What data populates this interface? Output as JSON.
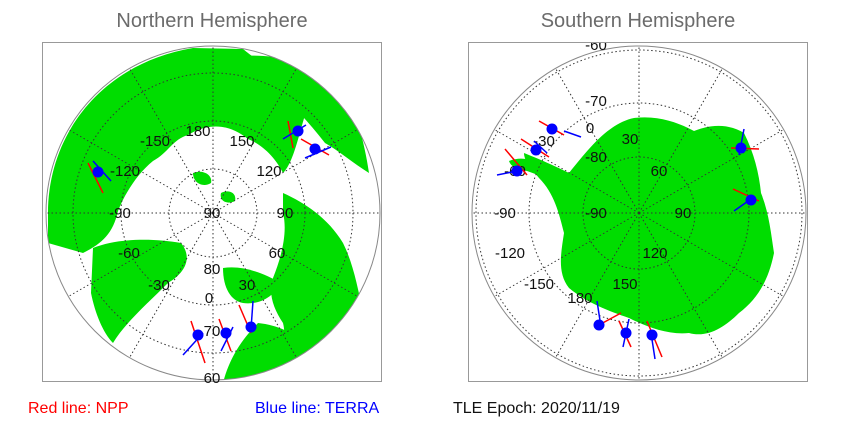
{
  "north": {
    "title": "Northern Hemisphere",
    "lon_labels": [
      "180",
      "150",
      "120",
      "90",
      "60",
      "30",
      "0",
      "-30",
      "-60",
      "-90",
      "-120",
      "-150"
    ],
    "lat_labels": [
      "90",
      "80",
      "70",
      "60"
    ]
  },
  "south": {
    "title": "Southern Hemisphere",
    "lon_labels": [
      "0",
      "30",
      "60",
      "90",
      "120",
      "150",
      "180",
      "-150",
      "-120",
      "-90",
      "-60",
      "-30"
    ],
    "lat_labels": [
      "-90",
      "-80",
      "-70",
      "-60"
    ]
  },
  "legend": {
    "npp": "Red line: NPP",
    "terra": "Blue line: TERRA",
    "epoch": "TLE Epoch: 2020/11/19"
  },
  "colors": {
    "land": "#00dd00",
    "npp": "#ff0000",
    "terra": "#0000ff"
  }
}
